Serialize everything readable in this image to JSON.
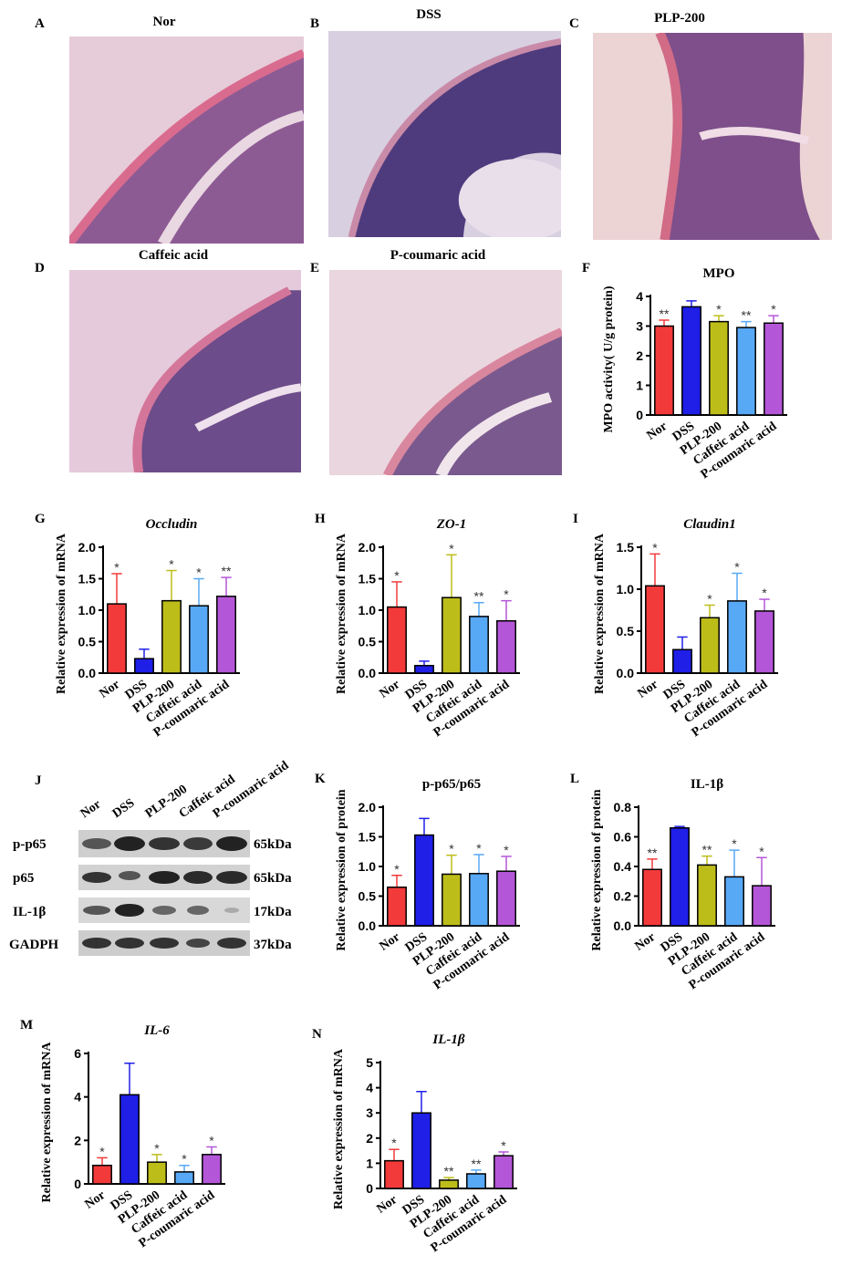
{
  "panels": {
    "A": {
      "letter": "A",
      "title": "Nor"
    },
    "B": {
      "letter": "B",
      "title": "DSS"
    },
    "C": {
      "letter": "C",
      "title": "PLP-200"
    },
    "D": {
      "letter": "D",
      "title": "Caffeic acid"
    },
    "E": {
      "letter": "E",
      "title": "P-coumaric acid"
    },
    "J": {
      "letter": "J"
    }
  },
  "colors": {
    "Nor": "#f23a3a",
    "DSS": "#1f1fe8",
    "PLP-200": "#bdbd1a",
    "Caffeic acid": "#58a9f5",
    "P-coumaric acid": "#b456d8"
  },
  "blot": {
    "columns": [
      "Nor",
      "DSS",
      "PLP-200",
      "Caffeic acid",
      "P-coumaric acid"
    ],
    "rows": [
      {
        "label": "p-p65",
        "kda": "65kDa"
      },
      {
        "label": "p65",
        "kda": "65kDa"
      },
      {
        "label": "IL-1β",
        "kda": "17kDa"
      },
      {
        "label": "GADPH",
        "kda": "37kDa"
      }
    ]
  },
  "chart_data": [
    {
      "id": "F",
      "letter": "F",
      "type": "bar",
      "title": "MPO",
      "title_italic": false,
      "ylabel": "MPO activity( U/g protein)",
      "ylim": [
        0,
        4
      ],
      "yticks": [
        "0",
        "1",
        "2",
        "3",
        "4"
      ],
      "categories": [
        "Nor",
        "DSS",
        "PLP-200",
        "Caffeic acid",
        "P-coumaric acid"
      ],
      "values": [
        3.0,
        3.65,
        3.15,
        2.95,
        3.1
      ],
      "errors": [
        0.2,
        0.2,
        0.2,
        0.2,
        0.25
      ],
      "sig": [
        "**",
        "",
        "*",
        "**",
        "*"
      ]
    },
    {
      "id": "G",
      "letter": "G",
      "type": "bar",
      "title": "Occludin",
      "title_italic": true,
      "ylabel": "Relative expression of mRNA",
      "ylim": [
        0,
        2
      ],
      "yticks": [
        "0.0",
        "0.5",
        "1.0",
        "1.5",
        "2.0"
      ],
      "categories": [
        "Nor",
        "DSS",
        "PLP-200",
        "Caffeic acid",
        "P-coumaric acid"
      ],
      "values": [
        1.1,
        0.23,
        1.15,
        1.07,
        1.22
      ],
      "errors": [
        0.48,
        0.15,
        0.48,
        0.43,
        0.3
      ],
      "sig": [
        "*",
        "",
        "*",
        "*",
        "**"
      ]
    },
    {
      "id": "H",
      "letter": "H",
      "type": "bar",
      "title": "ZO-1",
      "title_italic": true,
      "ylabel": "Relative expression of mRNA",
      "ylim": [
        0,
        2
      ],
      "yticks": [
        "0.0",
        "0.5",
        "1.0",
        "1.5",
        "2.0"
      ],
      "categories": [
        "Nor",
        "DSS",
        "PLP-200",
        "Caffeic acid",
        "P-coumaric acid"
      ],
      "values": [
        1.05,
        0.12,
        1.2,
        0.9,
        0.83
      ],
      "errors": [
        0.4,
        0.07,
        0.68,
        0.22,
        0.32
      ],
      "sig": [
        "*",
        "",
        "*",
        "**",
        "*"
      ]
    },
    {
      "id": "I",
      "letter": "I",
      "type": "bar",
      "title": "Claudin1",
      "title_italic": true,
      "ylabel": "Relative expression of mRNA",
      "ylim": [
        0,
        1.5
      ],
      "yticks": [
        "0.0",
        "0.5",
        "1.0",
        "1.5"
      ],
      "categories": [
        "Nor",
        "DSS",
        "PLP-200",
        "Caffeic acid",
        "P-coumaric acid"
      ],
      "values": [
        1.04,
        0.28,
        0.66,
        0.86,
        0.74
      ],
      "errors": [
        0.38,
        0.15,
        0.15,
        0.33,
        0.14
      ],
      "sig": [
        "*",
        "",
        "*",
        "*",
        "*"
      ]
    },
    {
      "id": "K",
      "letter": "K",
      "type": "bar",
      "title": "p-p65/p65",
      "title_italic": false,
      "ylabel": "Relative expression of protein",
      "ylim": [
        0,
        2
      ],
      "yticks": [
        "0.0",
        "0.5",
        "1.0",
        "1.5",
        "2.0"
      ],
      "categories": [
        "Nor",
        "DSS",
        "PLP-200",
        "Caffeic acid",
        "P-coumaric acid"
      ],
      "values": [
        0.65,
        1.53,
        0.87,
        0.88,
        0.92
      ],
      "errors": [
        0.2,
        0.28,
        0.32,
        0.32,
        0.25
      ],
      "sig": [
        "*",
        "",
        "*",
        "*",
        "*"
      ]
    },
    {
      "id": "L",
      "letter": "L",
      "type": "bar",
      "title": "IL-1β",
      "title_italic": false,
      "ylabel": "Relative expression of protein",
      "ylim": [
        0,
        0.8
      ],
      "yticks": [
        "0.0",
        "0.2",
        "0.4",
        "0.6",
        "0.8"
      ],
      "categories": [
        "Nor",
        "DSS",
        "PLP-200",
        "Caffeic acid",
        "P-coumaric acid"
      ],
      "values": [
        0.38,
        0.66,
        0.41,
        0.33,
        0.27
      ],
      "errors": [
        0.07,
        0.01,
        0.06,
        0.18,
        0.19
      ],
      "sig": [
        "**",
        "",
        "**",
        "*",
        "*"
      ]
    },
    {
      "id": "M",
      "letter": "M",
      "type": "bar",
      "title": "IL-6",
      "title_italic": true,
      "ylabel": "Relative expression of mRNA",
      "ylim": [
        0,
        6
      ],
      "yticks": [
        "0",
        "2",
        "4",
        "6"
      ],
      "categories": [
        "Nor",
        "DSS",
        "PLP-200",
        "Caffeic acid",
        "P-coumaric acid"
      ],
      "values": [
        0.85,
        4.1,
        1.0,
        0.55,
        1.35
      ],
      "errors": [
        0.35,
        1.45,
        0.35,
        0.3,
        0.35
      ],
      "sig": [
        "*",
        "",
        "*",
        "*",
        "*"
      ]
    },
    {
      "id": "N",
      "letter": "N",
      "type": "bar",
      "title": "IL-1β",
      "title_italic": true,
      "ylabel": "Relative expression of mRNA",
      "ylim": [
        0,
        5
      ],
      "yticks": [
        "0",
        "1",
        "2",
        "3",
        "4",
        "5"
      ],
      "categories": [
        "Nor",
        "DSS",
        "PLP-200",
        "Caffeic acid",
        "P-coumaric acid"
      ],
      "values": [
        1.1,
        3.0,
        0.33,
        0.58,
        1.3
      ],
      "errors": [
        0.45,
        0.85,
        0.1,
        0.15,
        0.15
      ],
      "sig": [
        "*",
        "",
        "**",
        "**",
        "*"
      ]
    }
  ]
}
